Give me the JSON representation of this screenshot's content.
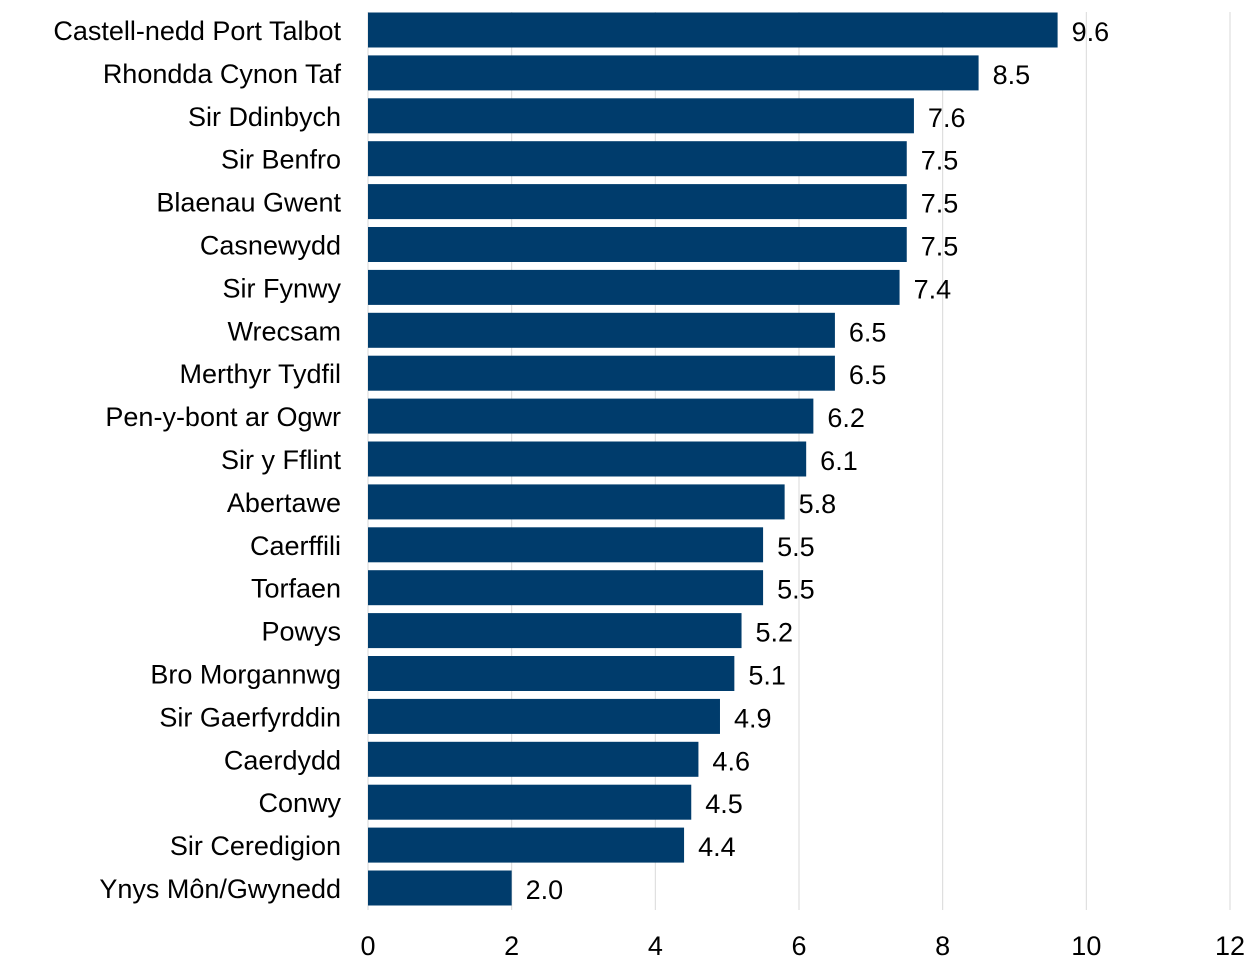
{
  "chart_data": {
    "type": "bar",
    "orientation": "horizontal",
    "title": "",
    "xlabel": "",
    "ylabel": "",
    "xlim": [
      0,
      12
    ],
    "ticks": [
      0,
      2,
      4,
      6,
      8,
      10,
      12
    ],
    "grid": true,
    "legend": "none",
    "bar_color": "#003c6c",
    "categories": [
      "Castell-nedd Port Talbot",
      "Rhondda Cynon Taf",
      "Sir Ddinbych",
      "Sir Benfro",
      "Blaenau Gwent",
      "Casnewydd",
      "Sir Fynwy",
      "Wrecsam",
      "Merthyr Tydfil",
      "Pen-y-bont ar Ogwr",
      "Sir y Fflint",
      "Abertawe",
      "Caerffili",
      "Torfaen",
      "Powys",
      "Bro Morgannwg",
      "Sir Gaerfyrddin",
      "Caerdydd",
      "Conwy",
      "Sir Ceredigion",
      "Ynys Môn/Gwynedd"
    ],
    "values": [
      9.6,
      8.5,
      7.6,
      7.5,
      7.5,
      7.5,
      7.4,
      6.5,
      6.5,
      6.2,
      6.1,
      5.8,
      5.5,
      5.5,
      5.2,
      5.1,
      4.9,
      4.6,
      4.5,
      4.4,
      2.0
    ],
    "data_labels": [
      "9.6",
      "8.5",
      "7.6",
      "7.5",
      "7.5",
      "7.5",
      "7.4",
      "6.5",
      "6.5",
      "6.2",
      "6.1",
      "5.8",
      "5.5",
      "5.5",
      "5.2",
      "5.1",
      "4.9",
      "4.6",
      "4.5",
      "4.4",
      "2.0"
    ]
  }
}
